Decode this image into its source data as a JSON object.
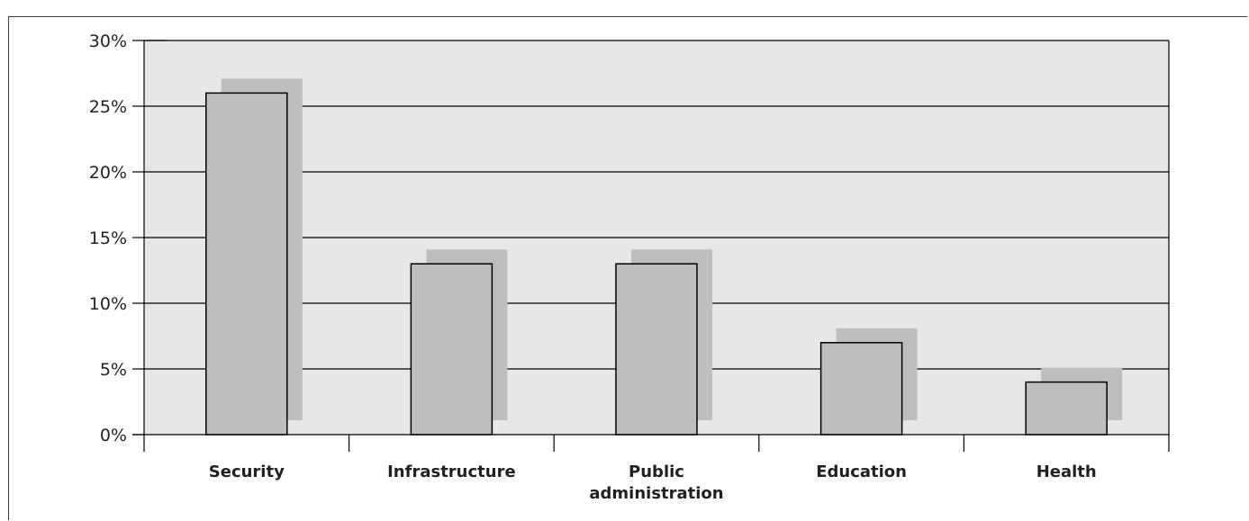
{
  "chart_data": {
    "type": "bar",
    "title": "",
    "xlabel": "",
    "ylabel": "",
    "categories": [
      [
        "Security"
      ],
      [
        "Infrastructure"
      ],
      [
        "Public",
        "administration"
      ],
      [
        "Education"
      ],
      [
        "Health"
      ]
    ],
    "values": [
      26,
      13,
      13,
      7,
      4
    ],
    "ylim": [
      0,
      30
    ],
    "yticks": [
      0,
      5,
      10,
      15,
      20,
      25,
      30
    ],
    "ytick_labels": [
      "0%",
      "5%",
      "10%",
      "15%",
      "20%",
      "25%",
      "30%"
    ],
    "grid": true,
    "legend": "none",
    "colors": {
      "plot_background": "#e6e7e8",
      "bar_fill": "#bcbec0",
      "bar_shadow": "#bcbec0",
      "bar_outline": "#000000",
      "gridline": "#000000"
    }
  }
}
